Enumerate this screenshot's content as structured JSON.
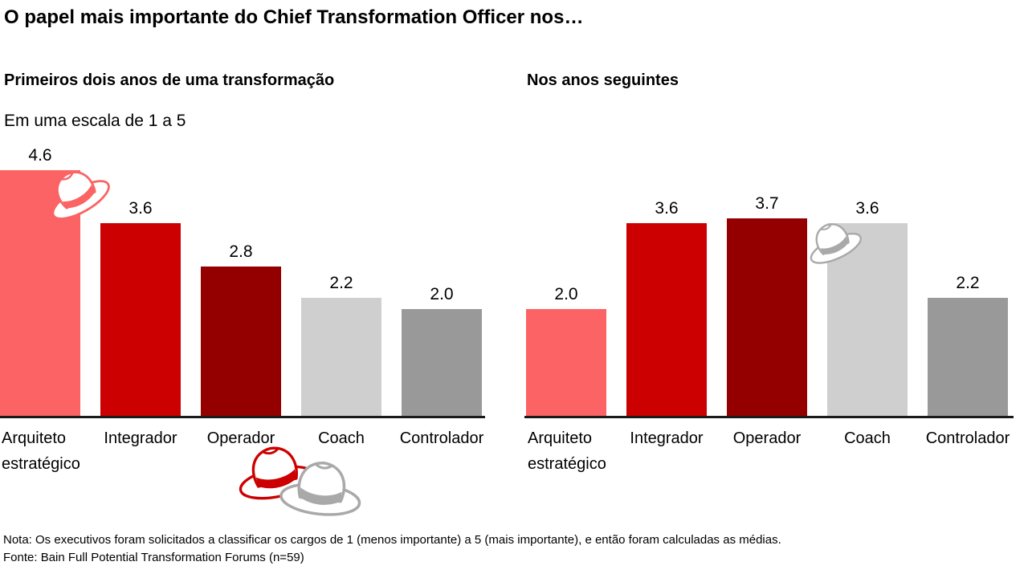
{
  "title": "O papel mais importante do Chief Transformation Officer nos…",
  "chart_data": [
    {
      "type": "bar",
      "title": "Primeiros dois anos de uma transformação",
      "subtitle": "Em uma escala de 1 a 5",
      "categories": [
        "Arquiteto estratégico",
        "Integrador",
        "Operador",
        "Coach",
        "Controlador"
      ],
      "values": [
        4.6,
        3.6,
        2.8,
        2.2,
        2.0
      ],
      "ylim": [
        0,
        5
      ],
      "grid": false,
      "data_labels": true,
      "legend": "none"
    },
    {
      "type": "bar",
      "title": "Nos anos seguintes",
      "categories": [
        "Arquiteto estratégico",
        "Integrador",
        "Operador",
        "Coach",
        "Controlador"
      ],
      "values": [
        2.0,
        3.6,
        3.7,
        3.6,
        2.2
      ],
      "ylim": [
        0,
        5
      ],
      "grid": false,
      "data_labels": true,
      "legend": "none"
    }
  ],
  "colors": {
    "bars": [
      "#fb6364",
      "#cc0000",
      "#940000",
      "#cfcfcf",
      "#999999"
    ],
    "axis": "#1a1a1a",
    "text": "#000000"
  },
  "icons": {
    "hat_strategic_architect": {
      "glyph": "fedora-hat",
      "color": "#fb6364"
    },
    "hat_bottom_red": {
      "glyph": "fedora-hat",
      "color": "#cc0000"
    },
    "hat_bottom_white": {
      "glyph": "fedora-hat",
      "color": "#a9a9a9"
    },
    "hat_coach": {
      "glyph": "fedora-hat",
      "color": "#a9a9a9"
    }
  },
  "footer": {
    "note": "Nota: Os executivos foram solicitados a classificar os cargos de 1 (menos importante) a 5 (mais importante), e então foram calculadas as médias.",
    "source": "Fonte: Bain Full Potential Transformation Forums (n=59)"
  }
}
